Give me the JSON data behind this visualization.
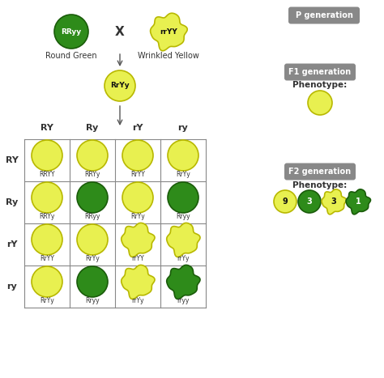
{
  "bg_color": "#ffffff",
  "dark_green": "#2e8b1a",
  "light_yellow": "#e8f050",
  "gray_box_color": "#888888",
  "p_gen_label": "P generation",
  "f1_gen_label": "F1 generation",
  "f2_gen_label": "F2 generation",
  "phenotype_label": "Phenotype:",
  "p1_genotype": "RRyy",
  "p1_phenotype": "Round Green",
  "p2_genotype": "rrYY",
  "p2_phenotype": "Wrinkled Yellow",
  "f1_genotype": "RrYy",
  "cross_symbol": "X",
  "col_headers": [
    "RY",
    "Ry",
    "rY",
    "ry"
  ],
  "row_headers": [
    "RY",
    "Ry",
    "rY",
    "ry"
  ],
  "grid_genotypes": [
    [
      "RRYY",
      "RRYy",
      "RrYY",
      "RrYy"
    ],
    [
      "RRYy",
      "RRyy",
      "RrYy",
      "Rryy"
    ],
    [
      "RrYY",
      "RrYy",
      "rrYY",
      "rrYy"
    ],
    [
      "RrYy",
      "Rryy",
      "rrYy",
      "rryy"
    ]
  ],
  "grid_colors": [
    [
      "yellow_round",
      "yellow_round",
      "yellow_round",
      "yellow_round"
    ],
    [
      "yellow_round",
      "green_round",
      "yellow_round",
      "green_round"
    ],
    [
      "yellow_round",
      "yellow_round",
      "yellow_wrinkled",
      "yellow_wrinkled"
    ],
    [
      "yellow_round",
      "green_round",
      "yellow_wrinkled",
      "green_wrinkled"
    ]
  ],
  "f2_ratio": [
    9,
    3,
    3,
    1
  ],
  "f2_colors": [
    "yellow_round",
    "green_round",
    "yellow_wrinkled",
    "green_wrinkled"
  ]
}
